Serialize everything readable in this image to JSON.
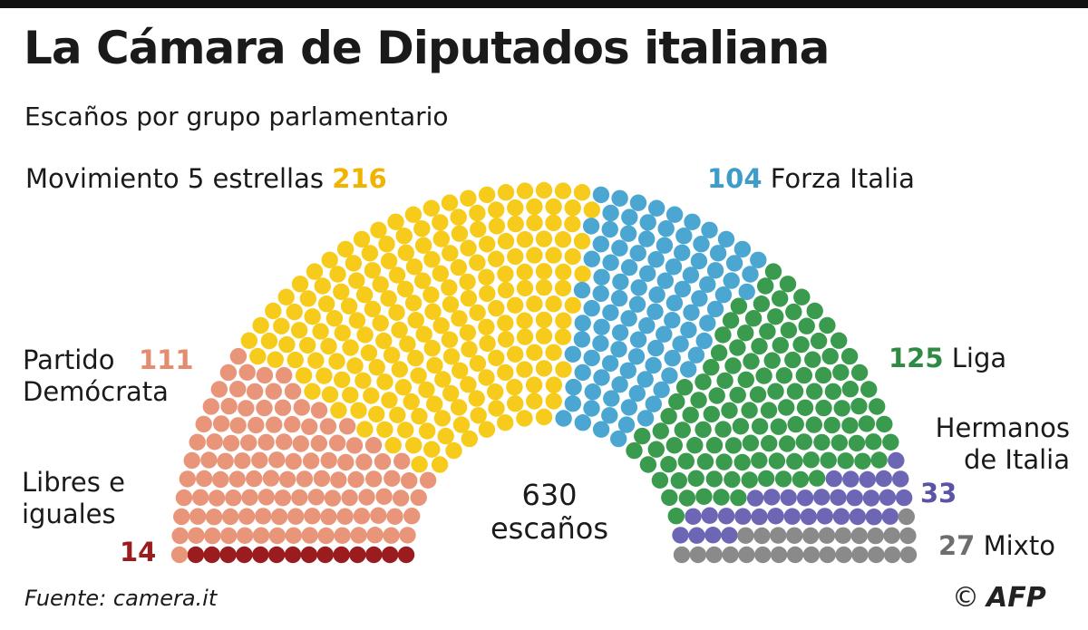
{
  "title": "La Cámara de Diputados italiana",
  "subtitle": "Escaños por grupo parlamentario",
  "total": {
    "number": "630",
    "label": "escaños"
  },
  "source": "Fuente: camera.it",
  "credit": {
    "copyright": "©",
    "agency": "AFP"
  },
  "colors": {
    "accent": "#333333"
  },
  "chart_data": {
    "type": "parliament",
    "title": "La Cámara de Diputados italiana",
    "subtitle": "Escaños por grupo parlamentario",
    "total_seats": 630,
    "groups": [
      {
        "name": "Libres e iguales",
        "value": 14,
        "color": "#9b1c1f"
      },
      {
        "name": "Partido Demócrata",
        "value": 111,
        "color": "#e9957a"
      },
      {
        "name": "Movimiento 5 estrellas",
        "value": 216,
        "color": "#f7cb1b"
      },
      {
        "name": "Forza Italia",
        "value": 104,
        "color": "#4ba7d1"
      },
      {
        "name": "Liga",
        "value": 125,
        "color": "#3a9a4d"
      },
      {
        "name": "Hermanos de Italia",
        "value": 33,
        "color": "#6c66b5"
      },
      {
        "name": "Mixto",
        "value": 27,
        "color": "#8a8a8a"
      }
    ]
  }
}
